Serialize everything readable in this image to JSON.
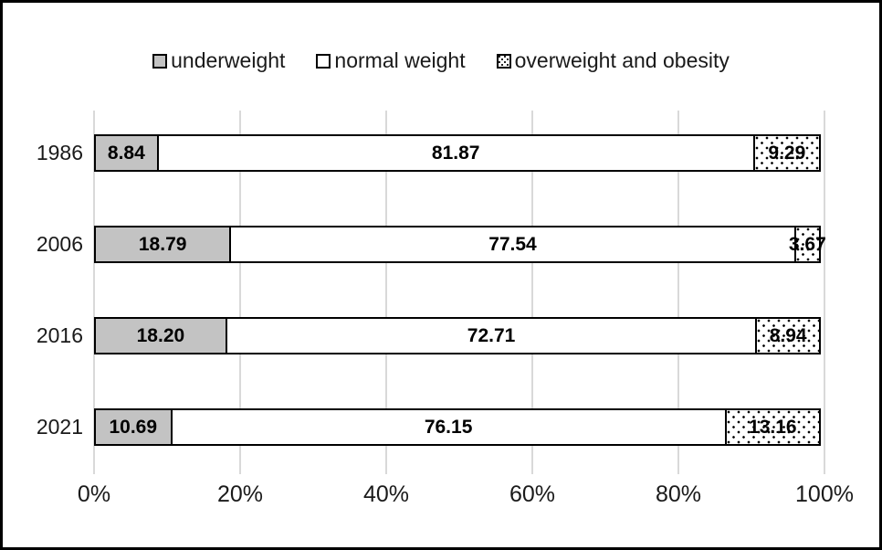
{
  "legend": {
    "items": [
      {
        "label": "underweight",
        "swatch": "gray"
      },
      {
        "label": "normal weight",
        "swatch": "white"
      },
      {
        "label": "overweight and obesity",
        "swatch": "dots"
      }
    ]
  },
  "colors": {
    "underweight_fill": "#c3c3c3",
    "normal_weight_fill": "#ffffff",
    "overweight_pattern": "black dots on white",
    "segment_border": "#000000",
    "gridline": "#d9d9d9",
    "text": "#1a1a1a",
    "frame_border": "#000000"
  },
  "chart_data": {
    "type": "bar",
    "orientation": "horizontal",
    "stacked": true,
    "percent_stacked": true,
    "title": "",
    "xlabel": "",
    "ylabel": "",
    "unit": "%",
    "categories": [
      "1986",
      "2006",
      "2016",
      "2021"
    ],
    "series": [
      {
        "name": "underweight",
        "fill": "#c3c3c3",
        "pattern": "solid",
        "values": [
          8.84,
          18.79,
          18.2,
          10.69
        ],
        "labels": [
          "8.84",
          "18.79",
          "18.20",
          "10.69"
        ]
      },
      {
        "name": "normal weight",
        "fill": "#ffffff",
        "pattern": "solid",
        "values": [
          81.87,
          77.54,
          72.71,
          76.15
        ],
        "labels": [
          "81.87",
          "77.54",
          "72.71",
          "76.15"
        ]
      },
      {
        "name": "overweight and obesity",
        "fill": "#ffffff",
        "pattern": "dots",
        "values": [
          9.29,
          3.67,
          8.94,
          13.16
        ],
        "labels": [
          "9.29",
          "3.67",
          "8.94",
          "13.16"
        ]
      }
    ],
    "x_ticks": [
      "0%",
      "20%",
      "40%",
      "60%",
      "80%",
      "100%"
    ],
    "xlim": [
      0,
      100
    ],
    "grid": "vertical",
    "legend_position": "top"
  }
}
